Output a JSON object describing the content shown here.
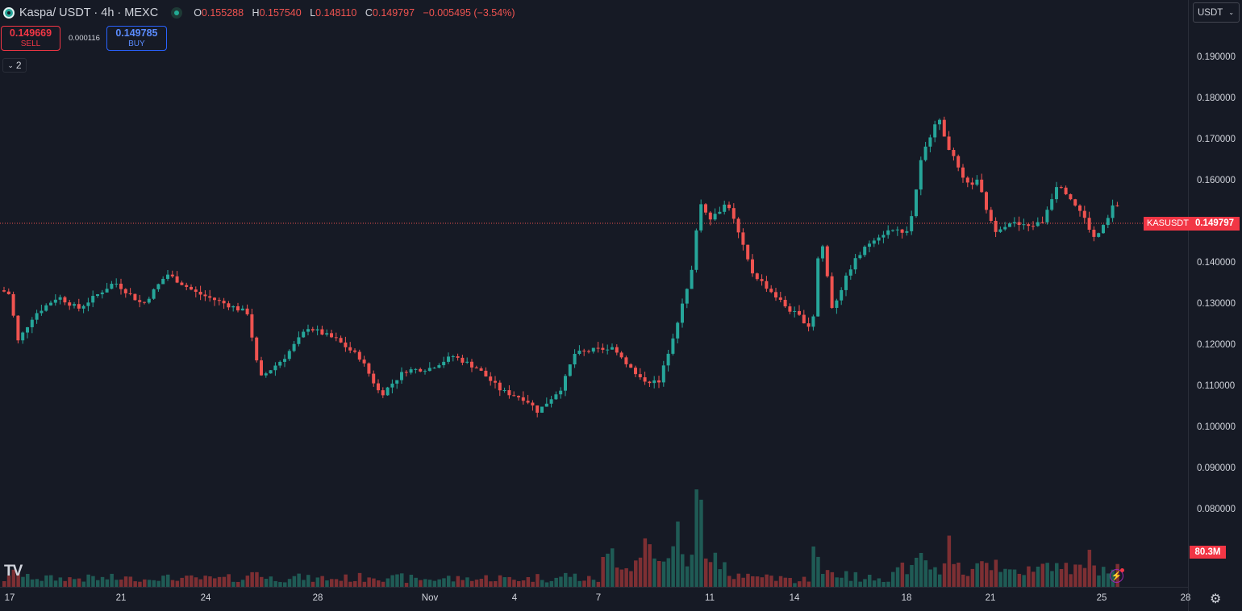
{
  "header": {
    "symbol": "Kaspa",
    "pair_rest": " / USDT · 4h · MEXC",
    "ohlc": {
      "o_label": "O",
      "o": "0.155288",
      "h_label": "H",
      "h": "0.157540",
      "l_label": "L",
      "l": "0.148110",
      "c_label": "C",
      "c": "0.149797",
      "change": "−0.005495 (−3.54%)"
    }
  },
  "trade": {
    "sell_price": "0.149669",
    "sell_label": "SELL",
    "spread": "0.000116",
    "buy_price": "0.149785",
    "buy_label": "BUY"
  },
  "indicators_toggle": {
    "count": "2"
  },
  "price_axis": {
    "currency": "USDT",
    "ticks": [
      "0.190000",
      "0.180000",
      "0.170000",
      "0.160000",
      "0.150000",
      "0.140000",
      "0.130000",
      "0.120000",
      "0.110000",
      "0.100000",
      "0.090000",
      "0.080000"
    ],
    "symbol_label": "KASUSDT",
    "last_price": "0.149797",
    "volume_label": "80.3M"
  },
  "time_axis": {
    "labels": [
      "17",
      "21",
      "24",
      "28",
      "Nov",
      "4",
      "7",
      "11",
      "14",
      "18",
      "21",
      "25",
      "28"
    ]
  },
  "colors": {
    "up": "#26a69a",
    "down": "#ef5350",
    "bg": "#161a25",
    "vol_up": "#1f5b55",
    "vol_down": "#7d2f33"
  },
  "chart_data": {
    "type": "candlestick",
    "interval": "4h",
    "ylim": [
      0.07,
      0.19
    ],
    "last_price": 0.149797,
    "anchors": [
      [
        0.1335,
        0
      ],
      [
        0.1325,
        10
      ],
      [
        0.121,
        20
      ],
      [
        0.1275,
        40
      ],
      [
        0.132,
        70
      ],
      [
        0.129,
        95
      ],
      [
        0.1355,
        140
      ],
      [
        0.13,
        175
      ],
      [
        0.1375,
        205
      ],
      [
        0.133,
        240
      ],
      [
        0.13,
        280
      ],
      [
        0.128,
        305
      ],
      [
        0.112,
        320
      ],
      [
        0.117,
        350
      ],
      [
        0.1245,
        380
      ],
      [
        0.1215,
        415
      ],
      [
        0.117,
        445
      ],
      [
        0.108,
        470
      ],
      [
        0.114,
        500
      ],
      [
        0.1145,
        530
      ],
      [
        0.1175,
        560
      ],
      [
        0.1145,
        590
      ],
      [
        0.109,
        620
      ],
      [
        0.107,
        650
      ],
      [
        0.104,
        665
      ],
      [
        0.11,
        695
      ],
      [
        0.118,
        710
      ],
      [
        0.119,
        735
      ],
      [
        0.1195,
        760
      ],
      [
        0.112,
        790
      ],
      [
        0.111,
        815
      ],
      [
        0.124,
        835
      ],
      [
        0.137,
        855
      ],
      [
        0.155,
        865
      ],
      [
        0.151,
        880
      ],
      [
        0.155,
        900
      ],
      [
        0.138,
        930
      ],
      [
        0.129,
        975
      ],
      [
        0.127,
        990
      ],
      [
        0.124,
        1005
      ],
      [
        0.148,
        1015
      ],
      [
        0.129,
        1030
      ],
      [
        0.14,
        1055
      ],
      [
        0.146,
        1080
      ],
      [
        0.148,
        1100
      ],
      [
        0.148,
        1125
      ],
      [
        0.165,
        1140
      ],
      [
        0.176,
        1160
      ],
      [
        0.168,
        1175
      ],
      [
        0.159,
        1195
      ],
      [
        0.16,
        1210
      ],
      [
        0.148,
        1230
      ],
      [
        0.15,
        1250
      ],
      [
        0.149,
        1270
      ],
      [
        0.15,
        1290
      ],
      [
        0.16,
        1310
      ],
      [
        0.152,
        1340
      ],
      [
        0.146,
        1355
      ],
      [
        0.15,
        1370
      ],
      [
        0.156,
        1382
      ],
      [
        0.1498,
        1387
      ]
    ],
    "volume_highlights": [
      [
        860,
        97
      ],
      [
        866,
        95
      ],
      [
        838,
        68
      ],
      [
        1007,
        50
      ],
      [
        1175,
        55
      ],
      [
        1350,
        36
      ],
      [
        800,
        38
      ]
    ]
  }
}
